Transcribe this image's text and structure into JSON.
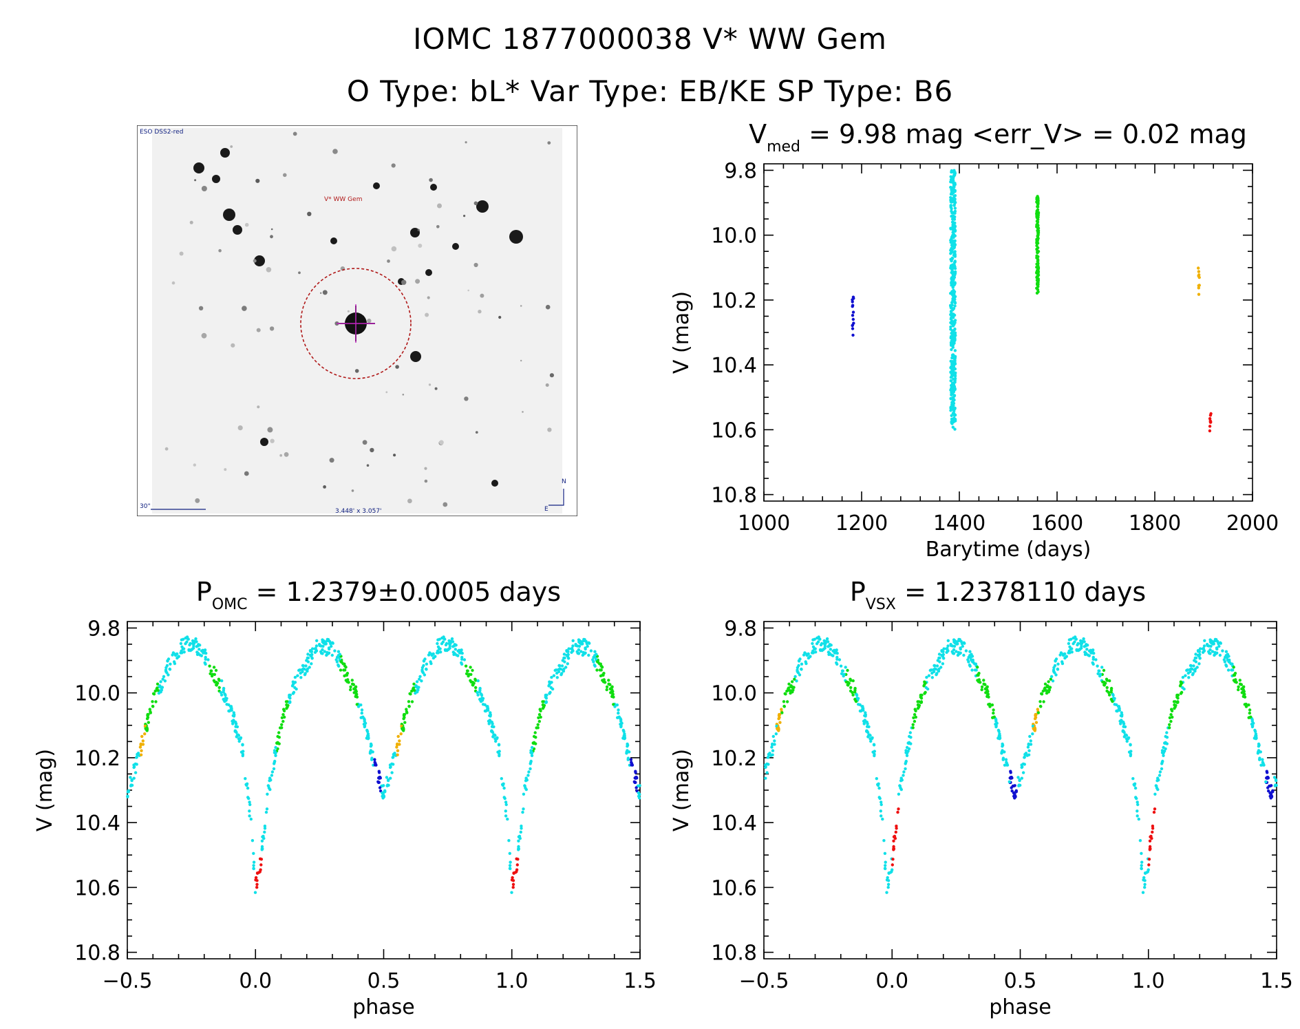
{
  "header": {
    "title": "IOMC 1877000038    V* WW Gem",
    "subtitle": "O Type: bL*  Var Type: EB/KE  SP Type: B6"
  },
  "finder": {
    "survey_label": "ESO DSS2-red",
    "target_label": "V* WW Gem",
    "scale_label": "30\"",
    "field_label": "3.448' x 3.057'",
    "north_label": "N",
    "east_label": "E",
    "circle_color": "#b01818",
    "cross_color": "#c020c0"
  },
  "colors": {
    "blue": "#1010d0",
    "cyan": "#10e0e8",
    "green": "#10dd10",
    "orange": "#f0b000",
    "red": "#ee1010"
  },
  "panels": {
    "lightcurve": {
      "title_main": "V",
      "title_sub": "med",
      "title_rest": " = 9.98 mag <err_V> = 0.02 mag",
      "xlabel": "Barytime (days)",
      "ylabel": "V (mag)"
    },
    "phase_omc": {
      "title_main": "P",
      "title_sub": "OMC",
      "title_rest": " = 1.2379±0.0005 days",
      "xlabel": "phase",
      "ylabel": "V (mag)"
    },
    "phase_vsx": {
      "title_main": "P",
      "title_sub": "VSX",
      "title_rest": " = 1.2378110 days",
      "xlabel": "phase",
      "ylabel": "V (mag)"
    }
  },
  "chart_data": [
    {
      "type": "scatter",
      "name": "lightcurve",
      "xlim": [
        1000,
        2000
      ],
      "ylim": [
        10.82,
        9.78
      ],
      "x_ticks": [
        1000,
        1200,
        1400,
        1600,
        1800,
        2000
      ],
      "x_tick_labels": [
        "1000",
        "1200",
        "1400",
        "1600",
        "1800",
        "2000"
      ],
      "y_ticks": [
        9.8,
        10.0,
        10.2,
        10.4,
        10.6,
        10.8
      ],
      "y_tick_labels": [
        "9.8",
        "10.0",
        "10.2",
        "10.4",
        "10.6",
        "10.8"
      ],
      "xlabel": "Barytime (days)",
      "ylabel": "V (mag)",
      "series": [
        {
          "color_key": "blue",
          "x_range": [
            1181,
            1184
          ],
          "v_range": [
            10.18,
            10.32
          ],
          "count": 14
        },
        {
          "color_key": "cyan",
          "x_range": [
            1382,
            1392
          ],
          "v_range": [
            9.8,
            10.6
          ],
          "count": 420
        },
        {
          "color_key": "green",
          "x_range": [
            1558,
            1562
          ],
          "v_range": [
            9.88,
            10.18
          ],
          "count": 120
        },
        {
          "color_key": "orange",
          "x_range": [
            1889,
            1892
          ],
          "v_range": [
            10.1,
            10.19
          ],
          "count": 9
        },
        {
          "color_key": "red",
          "x_range": [
            1912,
            1915
          ],
          "v_range": [
            10.55,
            10.62
          ],
          "count": 9
        }
      ]
    },
    {
      "type": "scatter",
      "name": "phase_omc",
      "period": 1.2379,
      "xlim": [
        -0.5,
        1.5
      ],
      "ylim": [
        10.82,
        9.78
      ],
      "x_ticks": [
        -0.5,
        0.0,
        0.5,
        1.0,
        1.5
      ],
      "x_tick_labels": [
        "−0.5",
        "0.0",
        "0.5",
        "1.0",
        "1.5"
      ],
      "y_ticks": [
        9.8,
        10.0,
        10.2,
        10.4,
        10.6,
        10.8
      ],
      "y_tick_labels": [
        "9.8",
        "10.0",
        "10.2",
        "10.4",
        "10.6",
        "10.8"
      ],
      "xlabel": "phase",
      "ylabel": "V (mag)",
      "phase_offset": 0.0
    },
    {
      "type": "scatter",
      "name": "phase_vsx",
      "period": 1.237811,
      "xlim": [
        -0.5,
        1.5
      ],
      "ylim": [
        10.82,
        9.78
      ],
      "x_ticks": [
        -0.5,
        0.0,
        0.5,
        1.0,
        1.5
      ],
      "x_tick_labels": [
        "−0.5",
        "0.0",
        "0.5",
        "1.0",
        "1.5"
      ],
      "y_ticks": [
        9.8,
        10.0,
        10.2,
        10.4,
        10.6,
        10.8
      ],
      "y_tick_labels": [
        "9.8",
        "10.0",
        "10.2",
        "10.4",
        "10.6",
        "10.8"
      ],
      "xlabel": "phase",
      "ylabel": "V (mag)",
      "phase_offset": -0.02
    }
  ],
  "phase_curve_model": {
    "description_points": [
      [
        0.0,
        10.6
      ],
      [
        0.02,
        10.52
      ],
      [
        0.05,
        10.3
      ],
      [
        0.08,
        10.18
      ],
      [
        0.12,
        10.03
      ],
      [
        0.17,
        9.95
      ],
      [
        0.24,
        9.86
      ],
      [
        0.3,
        9.86
      ],
      [
        0.34,
        9.92
      ],
      [
        0.4,
        10.02
      ],
      [
        0.45,
        10.18
      ],
      [
        0.5,
        10.31
      ],
      [
        0.55,
        10.18
      ],
      [
        0.6,
        10.03
      ],
      [
        0.66,
        9.92
      ],
      [
        0.72,
        9.85
      ],
      [
        0.78,
        9.86
      ],
      [
        0.84,
        9.94
      ],
      [
        0.9,
        10.04
      ],
      [
        0.95,
        10.18
      ],
      [
        0.98,
        10.38
      ],
      [
        1.0,
        10.6
      ]
    ]
  }
}
